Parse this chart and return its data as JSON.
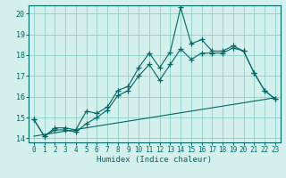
{
  "xlabel": "Humidex (Indice chaleur)",
  "bg_color": "#d4f0ec",
  "grid_color": "#8ecfca",
  "line_color": "#006666",
  "xlim": [
    -0.5,
    23.5
  ],
  "ylim": [
    13.8,
    20.4
  ],
  "xticks": [
    0,
    1,
    2,
    3,
    4,
    5,
    6,
    7,
    8,
    9,
    10,
    11,
    12,
    13,
    14,
    15,
    16,
    17,
    18,
    19,
    20,
    21,
    22,
    23
  ],
  "yticks": [
    14,
    15,
    16,
    17,
    18,
    19,
    20
  ],
  "main_y": [
    14.9,
    14.1,
    14.5,
    14.5,
    14.4,
    15.3,
    15.2,
    15.5,
    16.3,
    16.5,
    17.4,
    18.1,
    17.4,
    18.15,
    20.3,
    18.55,
    18.75,
    18.2,
    18.2,
    18.45,
    18.2,
    17.15,
    16.3,
    15.9
  ],
  "line2_y": [
    14.9,
    14.1,
    14.4,
    14.4,
    14.3,
    14.7,
    15.0,
    15.35,
    16.05,
    16.3,
    17.0,
    17.55,
    16.8,
    17.55,
    18.3,
    17.8,
    18.1,
    18.1,
    18.1,
    18.35,
    18.2,
    17.15,
    16.3,
    15.9
  ],
  "line3_y": [
    14.1,
    15.95
  ]
}
